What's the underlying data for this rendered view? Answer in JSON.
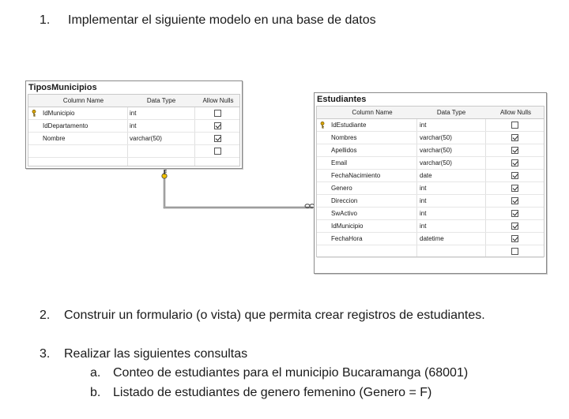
{
  "tasks": {
    "t1": {
      "number": "1.",
      "text": "Implementar el siguiente modelo en una base de datos"
    },
    "t2": {
      "number": "2.",
      "text": "Construir un formulario (o vista) que permita crear registros de estudiantes."
    },
    "t3": {
      "number": "3.",
      "text": "Realizar las siguientes consultas"
    },
    "t3a": {
      "number": "a.",
      "text": "Conteo de estudiantes para el municipio Bucaramanga (68001)"
    },
    "t3b": {
      "number": "b.",
      "text": "Listado de estudiantes de genero femenino (Genero = F)"
    }
  },
  "headers": {
    "column": "Column Name",
    "type": "Data Type",
    "nulls": "Allow Nulls"
  },
  "tipos": {
    "title": "TiposMunicipios",
    "rows": [
      {
        "name": "IdMunicipio",
        "type": "int",
        "nulls": false,
        "key": true
      },
      {
        "name": "IdDepartamento",
        "type": "int",
        "nulls": true,
        "key": false
      },
      {
        "name": "Nombre",
        "type": "varchar(50)",
        "nulls": true,
        "key": false
      },
      {
        "name": "",
        "type": "",
        "nulls": false,
        "key": false
      }
    ]
  },
  "estudiantes": {
    "title": "Estudiantes",
    "rows": [
      {
        "name": "IdEstudiante",
        "type": "int",
        "nulls": false,
        "key": true
      },
      {
        "name": "Nombres",
        "type": "varchar(50)",
        "nulls": true,
        "key": false
      },
      {
        "name": "Apellidos",
        "type": "varchar(50)",
        "nulls": true,
        "key": false
      },
      {
        "name": "Email",
        "type": "varchar(50)",
        "nulls": true,
        "key": false
      },
      {
        "name": "FechaNacimiento",
        "type": "date",
        "nulls": true,
        "key": false
      },
      {
        "name": "Genero",
        "type": "int",
        "nulls": true,
        "key": false
      },
      {
        "name": "Direccion",
        "type": "int",
        "nulls": true,
        "key": false
      },
      {
        "name": "SwActivo",
        "type": "int",
        "nulls": true,
        "key": false
      },
      {
        "name": "IdMunicipio",
        "type": "int",
        "nulls": true,
        "key": false
      },
      {
        "name": "FechaHora",
        "type": "datetime",
        "nulls": true,
        "key": false
      },
      {
        "name": "",
        "type": "",
        "nulls": false,
        "key": false
      }
    ]
  },
  "colors": {
    "key": "#d9a400",
    "relationship": "#6e6e6e"
  }
}
